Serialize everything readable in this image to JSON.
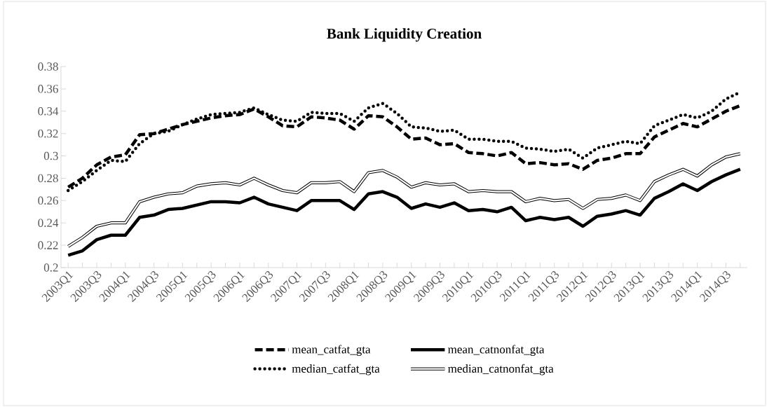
{
  "chart_data": {
    "type": "line",
    "title": "Bank Liquidity Creation",
    "categories": [
      "2003Q1",
      null,
      "2003Q3",
      null,
      "2004Q1",
      null,
      "2004Q3",
      null,
      "2005Q1",
      null,
      "2005Q3",
      null,
      "2006Q1",
      null,
      "2006Q3",
      null,
      "2007Q1",
      null,
      "2007Q3",
      null,
      "2008Q1",
      null,
      "2008Q3",
      null,
      "2009Q1",
      null,
      "2009Q3",
      null,
      "2010Q1",
      null,
      "2010Q3",
      null,
      "2011Q1",
      null,
      "2011Q3",
      null,
      "2012Q1",
      null,
      "2012Q3",
      null,
      "2013Q1",
      null,
      "2013Q3",
      null,
      "2014Q1",
      null,
      "2014Q3",
      null
    ],
    "ylim": [
      0.2,
      0.38
    ],
    "yticks": [
      0.2,
      0.22,
      0.24,
      0.26,
      0.28,
      0.3,
      0.32,
      0.34,
      0.36,
      0.38
    ],
    "legend": "bottom",
    "grid": false,
    "marker": "none",
    "series": [
      {
        "name": "mean_catfat_gta",
        "color": "#000000",
        "line_style": "dashed",
        "values": [
          0.272,
          0.28,
          0.292,
          0.299,
          0.301,
          0.319,
          0.32,
          0.324,
          0.328,
          0.331,
          0.334,
          0.336,
          0.337,
          0.342,
          0.335,
          0.327,
          0.326,
          0.335,
          0.334,
          0.332,
          0.324,
          0.336,
          0.335,
          0.326,
          0.315,
          0.316,
          0.31,
          0.311,
          0.303,
          0.302,
          0.3,
          0.303,
          0.293,
          0.294,
          0.292,
          0.293,
          0.288,
          0.296,
          0.298,
          0.302,
          0.302,
          0.317,
          0.323,
          0.329,
          0.326,
          0.333,
          0.34,
          0.345
        ]
      },
      {
        "name": "mean_catnonfat_gta",
        "color": "#000000",
        "line_style": "solid",
        "values": [
          0.211,
          0.215,
          0.225,
          0.229,
          0.229,
          0.245,
          0.247,
          0.252,
          0.253,
          0.256,
          0.259,
          0.259,
          0.258,
          0.263,
          0.257,
          0.254,
          0.251,
          0.26,
          0.26,
          0.26,
          0.252,
          0.266,
          0.268,
          0.263,
          0.253,
          0.257,
          0.254,
          0.258,
          0.251,
          0.252,
          0.25,
          0.254,
          0.242,
          0.245,
          0.243,
          0.245,
          0.237,
          0.246,
          0.248,
          0.251,
          0.247,
          0.262,
          0.268,
          0.275,
          0.269,
          0.277,
          0.283,
          0.288
        ]
      },
      {
        "name": "median_catfat_gta",
        "color": "#000000",
        "line_style": "dotted",
        "values": [
          0.269,
          0.277,
          0.287,
          0.296,
          0.295,
          0.311,
          0.32,
          0.322,
          0.328,
          0.333,
          0.337,
          0.338,
          0.339,
          0.343,
          0.337,
          0.332,
          0.331,
          0.339,
          0.338,
          0.338,
          0.331,
          0.343,
          0.347,
          0.338,
          0.326,
          0.325,
          0.322,
          0.323,
          0.315,
          0.315,
          0.313,
          0.313,
          0.307,
          0.306,
          0.304,
          0.306,
          0.298,
          0.307,
          0.31,
          0.313,
          0.311,
          0.327,
          0.332,
          0.337,
          0.334,
          0.34,
          0.351,
          0.357
        ]
      },
      {
        "name": "median_catnonfat_gta",
        "color": "#000000",
        "line_style": "solid",
        "values": [
          0.219,
          0.227,
          0.237,
          0.24,
          0.24,
          0.259,
          0.263,
          0.266,
          0.267,
          0.273,
          0.275,
          0.276,
          0.274,
          0.28,
          0.274,
          0.269,
          0.267,
          0.276,
          0.276,
          0.277,
          0.268,
          0.285,
          0.287,
          0.281,
          0.272,
          0.276,
          0.274,
          0.275,
          0.268,
          0.269,
          0.268,
          0.268,
          0.259,
          0.262,
          0.26,
          0.261,
          0.253,
          0.261,
          0.262,
          0.265,
          0.26,
          0.277,
          0.283,
          0.288,
          0.282,
          0.292,
          0.299,
          0.302
        ]
      }
    ]
  }
}
